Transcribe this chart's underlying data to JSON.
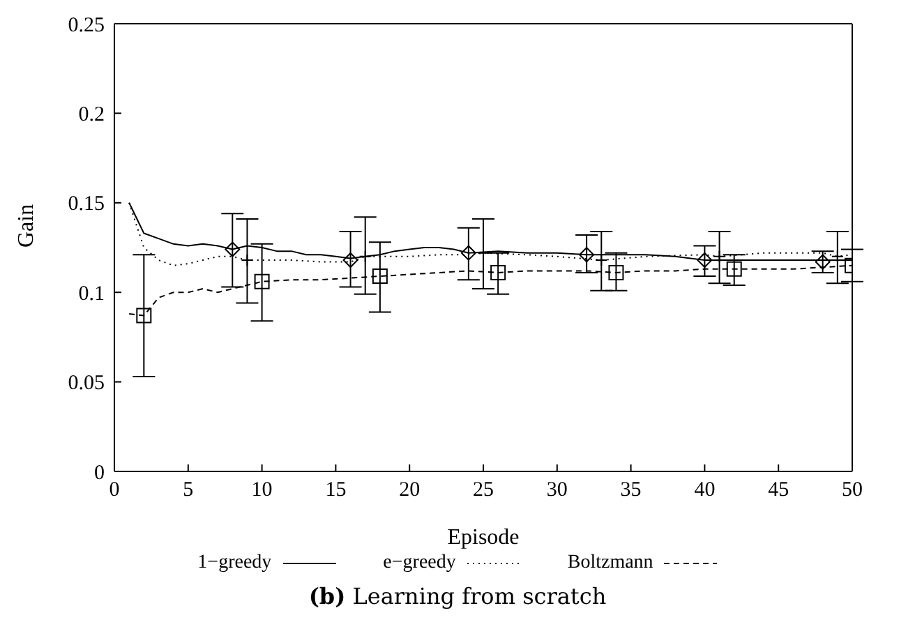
{
  "chart_data": {
    "type": "line",
    "title": "(b) Learning from scratch",
    "xlabel": "Episode",
    "ylabel": "Gain",
    "xlim": [
      0,
      50
    ],
    "xticks": [
      0,
      5,
      10,
      15,
      20,
      25,
      30,
      35,
      40,
      45,
      50
    ],
    "ylim": [
      0,
      0.25
    ],
    "yticks": [
      0,
      0.05,
      0.1,
      0.15,
      0.2,
      0.25
    ],
    "grid": false,
    "legend": "bottom",
    "marker": "none",
    "series": [
      {
        "name": "1−greedy",
        "color": "#000000",
        "line_style": "solid",
        "x": [
          1,
          2,
          3,
          4,
          5,
          6,
          7,
          8,
          9,
          10,
          11,
          12,
          13,
          14,
          15,
          16,
          17,
          18,
          19,
          20,
          21,
          22,
          23,
          24,
          26,
          28,
          30,
          32,
          34,
          36,
          38,
          40,
          42,
          44,
          46,
          48,
          50
        ],
        "values": [
          0.15,
          0.133,
          0.13,
          0.127,
          0.126,
          0.127,
          0.126,
          0.124,
          0.126,
          0.125,
          0.123,
          0.123,
          0.121,
          0.121,
          0.12,
          0.119,
          0.12,
          0.121,
          0.123,
          0.124,
          0.125,
          0.125,
          0.124,
          0.122,
          0.123,
          0.122,
          0.122,
          0.121,
          0.121,
          0.121,
          0.12,
          0.118,
          0.118,
          0.118,
          0.118,
          0.118,
          0.118
        ]
      },
      {
        "name": "e−greedy",
        "color": "#000000",
        "line_style": "dotted",
        "x": [
          1,
          2,
          3,
          4,
          5,
          6,
          7,
          8,
          9,
          10,
          12,
          14,
          16,
          17,
          18,
          20,
          22,
          24,
          25,
          28,
          30,
          33,
          36,
          40,
          41,
          44,
          46,
          48,
          49,
          50
        ],
        "values": [
          0.15,
          0.125,
          0.118,
          0.115,
          0.116,
          0.118,
          0.12,
          0.12,
          0.118,
          0.118,
          0.118,
          0.117,
          0.117,
          0.12,
          0.12,
          0.12,
          0.121,
          0.121,
          0.122,
          0.121,
          0.12,
          0.118,
          0.12,
          0.121,
          0.12,
          0.122,
          0.122,
          0.122,
          0.12,
          0.121
        ]
      },
      {
        "name": "Boltzmann",
        "color": "#000000",
        "line_style": "dashed",
        "x": [
          1,
          2,
          3,
          4,
          5,
          6,
          7,
          8,
          9,
          10,
          12,
          14,
          16,
          18,
          20,
          22,
          24,
          26,
          28,
          30,
          32,
          34,
          36,
          38,
          40,
          42,
          44,
          46,
          48,
          50
        ],
        "values": [
          0.088,
          0.087,
          0.097,
          0.1,
          0.1,
          0.102,
          0.1,
          0.102,
          0.104,
          0.106,
          0.107,
          0.107,
          0.108,
          0.109,
          0.11,
          0.111,
          0.112,
          0.111,
          0.112,
          0.112,
          0.112,
          0.111,
          0.112,
          0.112,
          0.113,
          0.113,
          0.113,
          0.113,
          0.114,
          0.115
        ]
      },
      {
        "type": "scatter",
        "color": "#000000",
        "marker": "diamond",
        "x": [
          8,
          16,
          24,
          32,
          40,
          48
        ],
        "values": [
          0.124,
          0.118,
          0.122,
          0.121,
          0.118,
          0.117
        ],
        "errors": [
          [
            0.103,
            0.144
          ],
          [
            0.103,
            0.134
          ],
          [
            0.107,
            0.136
          ],
          [
            0.111,
            0.132
          ],
          [
            0.109,
            0.126
          ],
          [
            0.111,
            0.123
          ]
        ]
      },
      {
        "type": "scatter",
        "color": "#000000",
        "marker": "cross",
        "x": [
          9,
          17,
          25,
          33,
          41,
          49
        ],
        "values": [
          0.118,
          0.12,
          0.122,
          0.118,
          0.12,
          0.12
        ],
        "errors": [
          [
            0.094,
            0.141
          ],
          [
            0.099,
            0.142
          ],
          [
            0.102,
            0.141
          ],
          [
            0.101,
            0.134
          ],
          [
            0.105,
            0.134
          ],
          [
            0.105,
            0.134
          ]
        ]
      },
      {
        "type": "scatter",
        "color": "#000000",
        "marker": "square",
        "x": [
          2,
          10,
          18,
          26,
          34,
          42,
          50
        ],
        "values": [
          0.087,
          0.106,
          0.109,
          0.111,
          0.111,
          0.113,
          0.115
        ],
        "errors": [
          [
            0.053,
            0.121
          ],
          [
            0.084,
            0.127
          ],
          [
            0.089,
            0.128
          ],
          [
            0.099,
            0.122
          ],
          [
            0.101,
            0.122
          ],
          [
            0.104,
            0.121
          ],
          [
            0.106,
            0.124
          ]
        ]
      }
    ]
  }
}
